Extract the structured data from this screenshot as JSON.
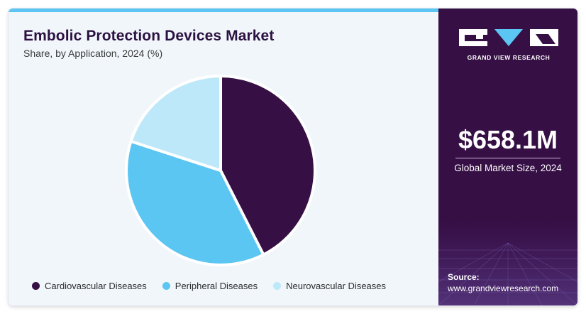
{
  "header": {
    "title": "Embolic Protection Devices Market",
    "subtitle": "Share, by Application, 2024 (%)"
  },
  "chart_data": {
    "type": "pie",
    "categories": [
      "Cardiovascular Diseases",
      "Peripheral Diseases",
      "Neurovascular Diseases"
    ],
    "values": [
      42.5,
      37.5,
      20.0
    ],
    "colors": [
      "#360f45",
      "#5cc6f2",
      "#bde8f9"
    ],
    "legend_position": "bottom"
  },
  "sidebar": {
    "brand": "GRAND VIEW RESEARCH",
    "market_size": "$658.1M",
    "market_size_label": "Global Market Size, 2024",
    "source_label": "Source:",
    "source_url": "www.grandviewresearch.com"
  },
  "colors": {
    "accent": "#5cc6f2",
    "brand_dark": "#360f45",
    "title": "#2b1241"
  }
}
